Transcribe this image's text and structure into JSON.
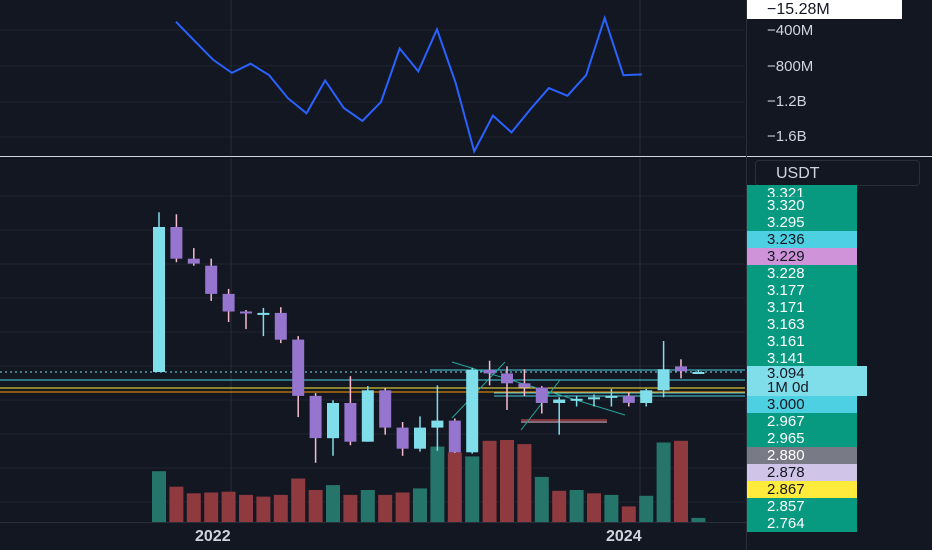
{
  "top_scale": {
    "current_value_label": "−15.28M",
    "tick_labels": [
      "−400M",
      "−800M",
      "−1.2B",
      "−1.6B"
    ]
  },
  "currency": "USDT",
  "price_labels": [
    {
      "text": "3.321",
      "color": "#089981"
    },
    {
      "text": "3.320",
      "color": "#089981"
    },
    {
      "text": "3.295",
      "color": "#089981"
    },
    {
      "text": "3.236",
      "color": "#4dd0e1"
    },
    {
      "text": "3.229",
      "color": "#ce93d8"
    },
    {
      "text": "3.228",
      "color": "#089981"
    },
    {
      "text": "3.177",
      "color": "#089981"
    },
    {
      "text": "3.171",
      "color": "#089981"
    },
    {
      "text": "3.163",
      "color": "#089981"
    },
    {
      "text": "3.161",
      "color": "#089981"
    },
    {
      "text": "3.141",
      "color": "#089981"
    },
    {
      "text": "3.000",
      "color": "#4dd0e1"
    },
    {
      "text": "2.967",
      "color": "#089981"
    },
    {
      "text": "2.965",
      "color": "#089981"
    },
    {
      "text": "2.880",
      "color": "#787b86"
    },
    {
      "text": "2.878",
      "color": "#d1c4e9"
    },
    {
      "text": "2.867",
      "color": "#ffeb3b"
    },
    {
      "text": "2.857",
      "color": "#089981"
    },
    {
      "text": "2.764",
      "color": "#089981"
    }
  ],
  "current_price": {
    "value": "3.094",
    "interval": "1M 0d"
  },
  "x_labels": [
    "2022",
    "2024"
  ],
  "chart_data": [
    {
      "type": "line",
      "series": [
        {
          "color": "#2962ff",
          "values": [
            -0.05,
            -0.3,
            -0.55,
            -0.72,
            -0.6,
            -0.75,
            -1.05,
            -1.25,
            -0.82,
            -1.18,
            -1.35,
            -1.1,
            -0.4,
            -0.7,
            -0.15,
            -0.85,
            -1.75,
            -1.28,
            -1.5,
            -1.2,
            -0.92,
            -1.02,
            -0.75,
            0.0,
            -0.75,
            -0.74
          ]
        }
      ]
    },
    {
      "type": "candlestick",
      "title": "",
      "colors": {
        "up": "#80deea",
        "down": "#9575cd",
        "vol_up": "#26756b",
        "vol_down": "#8e3a3e"
      },
      "candles": [
        {
          "o": 3.094,
          "h": 3.321,
          "l": 3.094,
          "c": 3.3
        },
        {
          "o": 3.3,
          "h": 3.318,
          "l": 3.25,
          "c": 3.255
        },
        {
          "o": 3.255,
          "h": 3.27,
          "l": 3.245,
          "c": 3.248
        },
        {
          "o": 3.245,
          "h": 3.255,
          "l": 3.195,
          "c": 3.205
        },
        {
          "o": 3.205,
          "h": 3.212,
          "l": 3.165,
          "c": 3.18
        },
        {
          "o": 3.18,
          "h": 3.182,
          "l": 3.155,
          "c": 3.178
        },
        {
          "o": 3.178,
          "h": 3.185,
          "l": 3.145,
          "c": 3.178
        },
        {
          "o": 3.178,
          "h": 3.186,
          "l": 3.135,
          "c": 3.14
        },
        {
          "o": 3.14,
          "h": 3.145,
          "l": 3.03,
          "c": 3.06
        },
        {
          "o": 3.06,
          "h": 3.064,
          "l": 2.965,
          "c": 3.0
        },
        {
          "o": 3.0,
          "h": 3.054,
          "l": 2.975,
          "c": 3.05
        },
        {
          "o": 3.05,
          "h": 3.088,
          "l": 2.99,
          "c": 2.995
        },
        {
          "o": 2.995,
          "h": 3.074,
          "l": 2.995,
          "c": 3.068
        },
        {
          "o": 3.068,
          "h": 3.071,
          "l": 3.005,
          "c": 3.015
        },
        {
          "o": 3.015,
          "h": 3.023,
          "l": 2.975,
          "c": 2.985
        },
        {
          "o": 2.985,
          "h": 3.031,
          "l": 2.981,
          "c": 3.015
        },
        {
          "o": 3.015,
          "h": 3.075,
          "l": 2.982,
          "c": 3.025
        },
        {
          "o": 3.025,
          "h": 3.028,
          "l": 2.979,
          "c": 2.98
        },
        {
          "o": 2.98,
          "h": 3.1,
          "l": 2.978,
          "c": 3.097
        },
        {
          "o": 3.097,
          "h": 3.11,
          "l": 3.075,
          "c": 3.092
        },
        {
          "o": 3.092,
          "h": 3.102,
          "l": 3.04,
          "c": 3.078
        },
        {
          "o": 3.078,
          "h": 3.098,
          "l": 3.06,
          "c": 3.072
        },
        {
          "o": 3.072,
          "h": 3.074,
          "l": 3.035,
          "c": 3.05
        },
        {
          "o": 3.05,
          "h": 3.058,
          "l": 3.005,
          "c": 3.055
        },
        {
          "o": 3.055,
          "h": 3.06,
          "l": 3.045,
          "c": 3.056
        },
        {
          "o": 3.056,
          "h": 3.062,
          "l": 3.045,
          "c": 3.058
        },
        {
          "o": 3.058,
          "h": 3.07,
          "l": 3.045,
          "c": 3.06
        },
        {
          "o": 3.06,
          "h": 3.065,
          "l": 3.045,
          "c": 3.05
        },
        {
          "o": 3.05,
          "h": 3.07,
          "l": 3.045,
          "c": 3.068
        },
        {
          "o": 3.068,
          "h": 3.138,
          "l": 3.058,
          "c": 3.098
        },
        {
          "o": 3.102,
          "h": 3.112,
          "l": 3.085,
          "c": 3.095
        },
        {
          "o": 3.094,
          "h": 3.097,
          "l": 3.092,
          "c": 3.094
        }
      ],
      "volumes": [
        0.62,
        0.43,
        0.35,
        0.36,
        0.37,
        0.33,
        0.31,
        0.33,
        0.53,
        0.39,
        0.45,
        0.33,
        0.39,
        0.33,
        0.36,
        0.41,
        0.92,
        0.85,
        0.8,
        0.99,
        1.0,
        0.95,
        0.55,
        0.38,
        0.39,
        0.35,
        0.33,
        0.19,
        0.32,
        0.97,
        0.99,
        0.05
      ],
      "volume_up": [
        true,
        false,
        false,
        false,
        false,
        false,
        false,
        false,
        false,
        false,
        true,
        false,
        true,
        false,
        false,
        true,
        true,
        false,
        true,
        false,
        false,
        false,
        true,
        false,
        true,
        false,
        true,
        false,
        true,
        true,
        false,
        true
      ]
    }
  ]
}
